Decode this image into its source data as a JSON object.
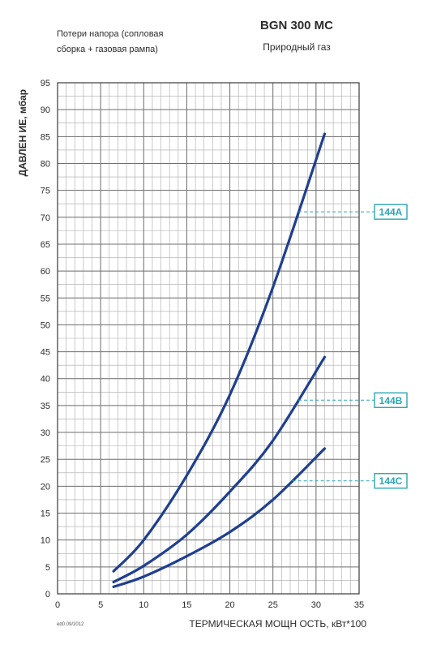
{
  "chart_data": {
    "type": "line",
    "title": "BGN 300 MC",
    "subtitle": "Природный газ",
    "note_lines": [
      "Потери напора (сопловая",
      "сборка + газовая рампа)"
    ],
    "ylabel": "ДАВЛЕН ИЕ, мбар",
    "xlabel": "ТЕРМИЧЕСКАЯ МОЩН ОСТЬ, кВт*100",
    "footer": "ed0.09/2012",
    "xlim": [
      0,
      35
    ],
    "ylim": [
      0,
      95
    ],
    "xticks": [
      "0",
      "5",
      "10",
      "15",
      "20",
      "25",
      "30",
      "35"
    ],
    "yticks": [
      "0",
      "5",
      "10",
      "15",
      "20",
      "25",
      "30",
      "35",
      "40",
      "45",
      "50",
      "55",
      "60",
      "65",
      "70",
      "75",
      "80",
      "85",
      "90",
      "95"
    ],
    "grid": true,
    "x_minor_step": 1,
    "y_minor_step": 2.5,
    "line_color": "#1f3f8f",
    "label_color": "#2aa6b4",
    "series": [
      {
        "name": "144A",
        "label_y": 71,
        "x": [
          6.5,
          10,
          15,
          20,
          25,
          31
        ],
        "y": [
          4.2,
          10,
          22,
          37,
          57,
          85.5
        ]
      },
      {
        "name": "144B",
        "label_y": 36,
        "x": [
          6.5,
          10,
          15,
          20,
          25,
          31
        ],
        "y": [
          2.2,
          5.2,
          11,
          19,
          28.5,
          44
        ]
      },
      {
        "name": "144C",
        "label_y": 21,
        "x": [
          6.5,
          10,
          15,
          20,
          25,
          31
        ],
        "y": [
          1.3,
          3.2,
          7,
          11.5,
          17.5,
          27
        ]
      }
    ]
  }
}
